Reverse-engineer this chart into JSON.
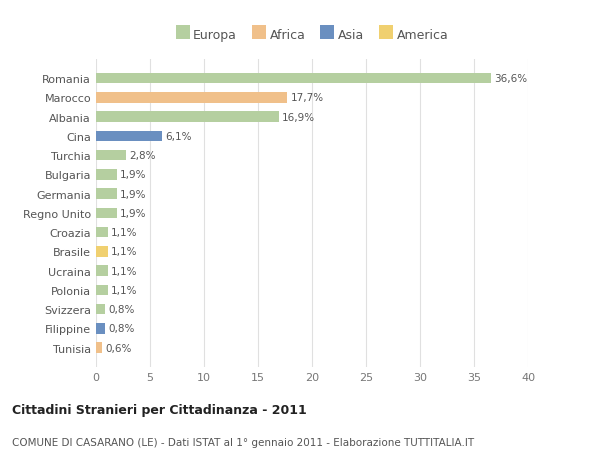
{
  "categories": [
    "Romania",
    "Marocco",
    "Albania",
    "Cina",
    "Turchia",
    "Bulgaria",
    "Germania",
    "Regno Unito",
    "Croazia",
    "Brasile",
    "Ucraina",
    "Polonia",
    "Svizzera",
    "Filippine",
    "Tunisia"
  ],
  "values": [
    36.6,
    17.7,
    16.9,
    6.1,
    2.8,
    1.9,
    1.9,
    1.9,
    1.1,
    1.1,
    1.1,
    1.1,
    0.8,
    0.8,
    0.6
  ],
  "labels": [
    "36,6%",
    "17,7%",
    "16,9%",
    "6,1%",
    "2,8%",
    "1,9%",
    "1,9%",
    "1,9%",
    "1,1%",
    "1,1%",
    "1,1%",
    "1,1%",
    "0,8%",
    "0,8%",
    "0,6%"
  ],
  "colors": [
    "#b5cfa0",
    "#f0c08a",
    "#b5cfa0",
    "#6a8fc0",
    "#b5cfa0",
    "#b5cfa0",
    "#b5cfa0",
    "#b5cfa0",
    "#b5cfa0",
    "#f0d070",
    "#b5cfa0",
    "#b5cfa0",
    "#b5cfa0",
    "#6a8fc0",
    "#f0c08a"
  ],
  "legend_labels": [
    "Europa",
    "Africa",
    "Asia",
    "America"
  ],
  "legend_colors": [
    "#b5cfa0",
    "#f0c08a",
    "#6a8fc0",
    "#f0d070"
  ],
  "xlim": [
    0,
    40
  ],
  "xticks": [
    0,
    5,
    10,
    15,
    20,
    25,
    30,
    35,
    40
  ],
  "title_bold": "Cittadini Stranieri per Cittadinanza - 2011",
  "subtitle": "COMUNE DI CASARANO (LE) - Dati ISTAT al 1° gennaio 2011 - Elaborazione TUTTITALIA.IT",
  "bg_color": "#ffffff",
  "grid_color": "#e0e0e0",
  "bar_height": 0.55
}
